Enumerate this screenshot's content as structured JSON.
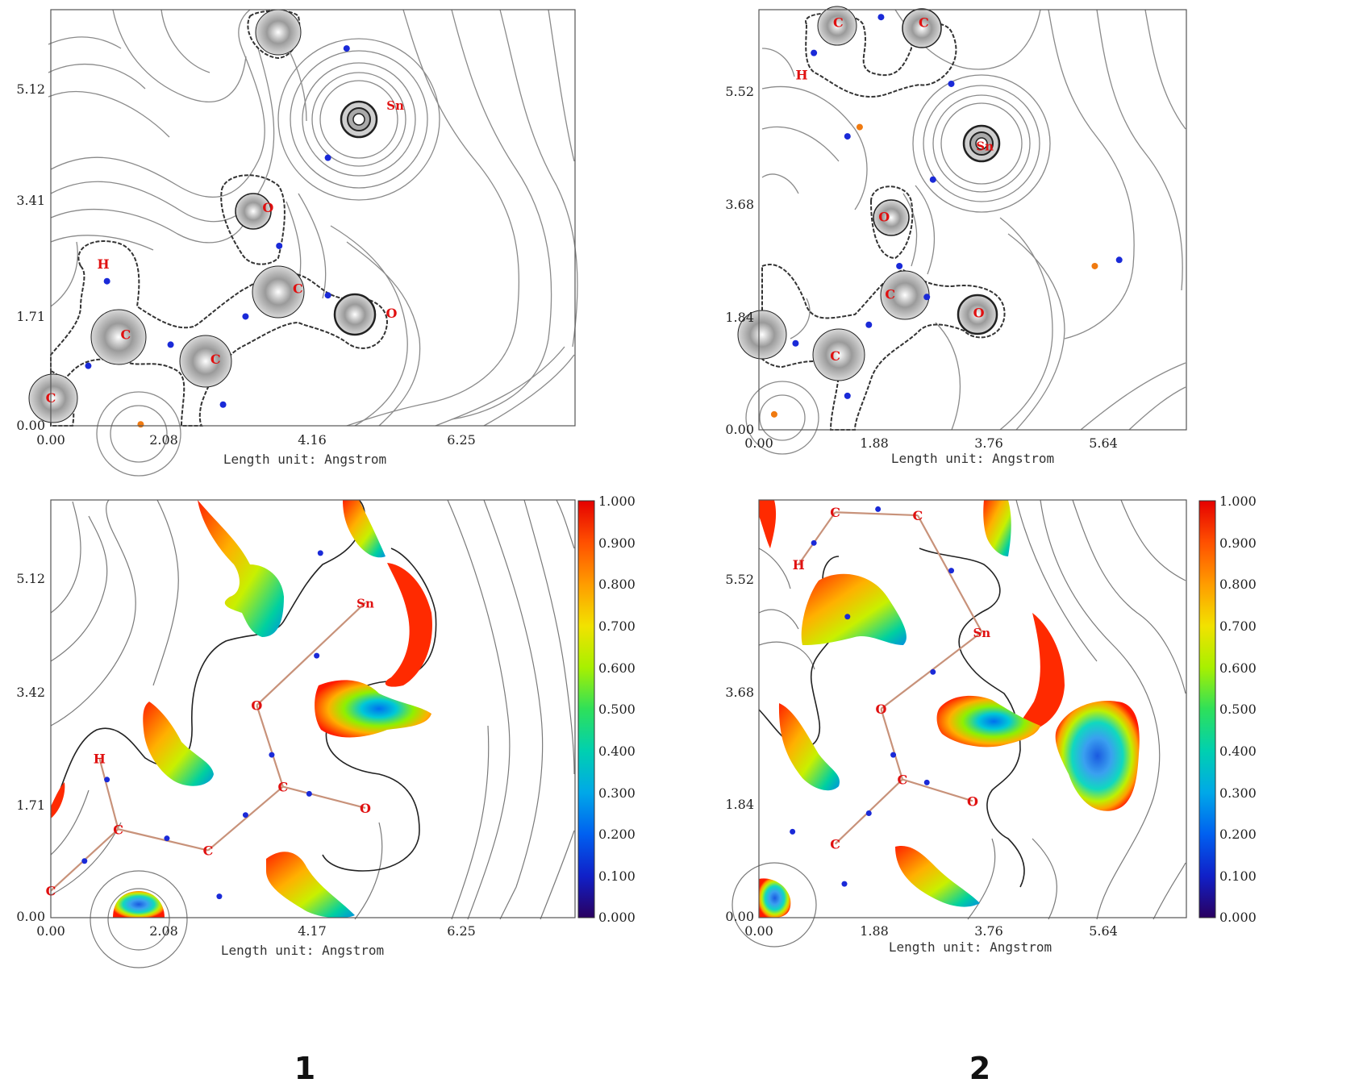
{
  "figure": {
    "captions": [
      "1",
      "2"
    ]
  },
  "chart_data": [
    {
      "type": "contour",
      "title": "",
      "xlabel": "Length unit: Angstrom",
      "ylabel": "",
      "x_ticks": [
        "0.00",
        "2.08",
        "4.16",
        "6.25"
      ],
      "y_ticks": [
        "0.00",
        "1.71",
        "3.41",
        "5.12"
      ],
      "xlim": [
        0,
        7.0
      ],
      "ylim": [
        0,
        5.9
      ],
      "atoms": [
        {
          "label": "Sn",
          "x": 4.6,
          "y": 4.55
        },
        {
          "label": "O",
          "x": 2.9,
          "y": 3.1
        },
        {
          "label": "C",
          "x": 3.3,
          "y": 1.95
        },
        {
          "label": "O",
          "x": 4.55,
          "y": 1.6
        },
        {
          "label": "C",
          "x": 1.0,
          "y": 1.3
        },
        {
          "label": "C",
          "x": 2.2,
          "y": 0.95
        },
        {
          "label": "H",
          "x": 0.7,
          "y": 2.3
        },
        {
          "label": "C",
          "x": 0.0,
          "y": 0.4
        }
      ],
      "bond_critical_points": [
        {
          "x": 3.7,
          "y": 3.8
        },
        {
          "x": 3.05,
          "y": 2.55
        },
        {
          "x": 3.7,
          "y": 1.85
        },
        {
          "x": 2.6,
          "y": 1.55
        },
        {
          "x": 1.6,
          "y": 1.15
        },
        {
          "x": 0.75,
          "y": 2.05
        },
        {
          "x": 0.5,
          "y": 0.85
        },
        {
          "x": 2.3,
          "y": 0.3
        },
        {
          "x": 3.95,
          "y": 5.35
        }
      ],
      "ring_critical_points": [
        {
          "x": 1.2,
          "y": 0.02
        }
      ]
    },
    {
      "type": "contour",
      "title": "",
      "xlabel": "Length unit: Angstrom",
      "ylabel": "",
      "x_ticks": [
        "0.00",
        "1.88",
        "3.76",
        "5.64"
      ],
      "y_ticks": [
        "0.00",
        "1.84",
        "3.68",
        "5.52"
      ],
      "xlim": [
        0,
        7.0
      ],
      "ylim": [
        0,
        6.8
      ],
      "atoms": [
        {
          "label": "Sn",
          "x": 3.7,
          "y": 4.6
        },
        {
          "label": "O",
          "x": 2.05,
          "y": 3.45
        },
        {
          "label": "C",
          "x": 2.15,
          "y": 2.2
        },
        {
          "label": "O",
          "x": 3.6,
          "y": 1.9
        },
        {
          "label": "C",
          "x": 1.25,
          "y": 1.2
        },
        {
          "label": "C",
          "x": 1.3,
          "y": 6.6
        },
        {
          "label": "C",
          "x": 2.7,
          "y": 6.6
        },
        {
          "label": "H",
          "x": 0.7,
          "y": 5.75
        }
      ],
      "bond_critical_points": [
        {
          "x": 2.0,
          "y": 6.68
        },
        {
          "x": 0.9,
          "y": 6.1
        },
        {
          "x": 3.15,
          "y": 5.6
        },
        {
          "x": 1.45,
          "y": 4.75
        },
        {
          "x": 2.85,
          "y": 4.05
        },
        {
          "x": 2.3,
          "y": 2.65
        },
        {
          "x": 2.75,
          "y": 2.15
        },
        {
          "x": 1.8,
          "y": 1.7
        },
        {
          "x": 0.6,
          "y": 1.4
        },
        {
          "x": 1.45,
          "y": 0.55
        },
        {
          "x": 5.9,
          "y": 2.75
        }
      ],
      "ring_critical_points": [
        {
          "x": 1.65,
          "y": 4.9
        },
        {
          "x": 5.5,
          "y": 2.65
        },
        {
          "x": 0.25,
          "y": 0.25
        }
      ]
    },
    {
      "type": "heatmap",
      "title": "",
      "xlabel": "Length unit: Angstrom",
      "ylabel": "",
      "x_ticks": [
        "0.00",
        "2.08",
        "4.17",
        "6.25"
      ],
      "y_ticks": [
        "0.00",
        "1.71",
        "3.42",
        "5.12"
      ],
      "xlim": [
        0,
        7.0
      ],
      "ylim": [
        0,
        5.9
      ],
      "colorbar": {
        "ticks": [
          "1.000",
          "0.900",
          "0.800",
          "0.700",
          "0.600",
          "0.500",
          "0.400",
          "0.300",
          "0.200",
          "0.100",
          "0.000"
        ],
        "range": [
          0,
          1
        ]
      },
      "atoms": [
        {
          "label": "Sn",
          "x": 4.2,
          "y": 4.45
        },
        {
          "label": "O",
          "x": 2.75,
          "y": 3.0
        },
        {
          "label": "C",
          "x": 3.1,
          "y": 1.85
        },
        {
          "label": "O",
          "x": 4.2,
          "y": 1.55
        },
        {
          "label": "C",
          "x": 0.9,
          "y": 1.25
        },
        {
          "label": "C",
          "x": 2.1,
          "y": 0.95
        },
        {
          "label": "H",
          "x": 0.65,
          "y": 2.25
        },
        {
          "label": "C",
          "x": 0.0,
          "y": 0.38
        }
      ],
      "bonds": [
        [
          0,
          1
        ],
        [
          1,
          2
        ],
        [
          2,
          3
        ],
        [
          2,
          5
        ],
        [
          5,
          4
        ],
        [
          4,
          6
        ],
        [
          4,
          7
        ]
      ],
      "critical_points": [
        {
          "x": 3.55,
          "y": 3.7
        },
        {
          "x": 2.95,
          "y": 2.3
        },
        {
          "x": 3.45,
          "y": 1.75
        },
        {
          "x": 2.6,
          "y": 1.45
        },
        {
          "x": 1.55,
          "y": 1.12
        },
        {
          "x": 0.75,
          "y": 1.95
        },
        {
          "x": 0.45,
          "y": 0.8
        },
        {
          "x": 2.25,
          "y": 0.3
        },
        {
          "x": 3.6,
          "y": 5.15
        }
      ]
    },
    {
      "type": "heatmap",
      "title": "",
      "xlabel": "Length unit: Angstrom",
      "ylabel": "",
      "x_ticks": [
        "0.00",
        "1.88",
        "3.76",
        "5.64"
      ],
      "y_ticks": [
        "0.00",
        "1.84",
        "3.68",
        "5.52"
      ],
      "xlim": [
        0,
        7.0
      ],
      "ylim": [
        0,
        6.8
      ],
      "colorbar": {
        "ticks": [
          "1.000",
          "0.900",
          "0.800",
          "0.700",
          "0.600",
          "0.500",
          "0.400",
          "0.300",
          "0.200",
          "0.100",
          "0.000"
        ],
        "range": [
          0,
          1
        ]
      },
      "atoms": [
        {
          "label": "Sn",
          "x": 3.65,
          "y": 4.65
        },
        {
          "label": "O",
          "x": 2.0,
          "y": 3.4
        },
        {
          "label": "C",
          "x": 2.35,
          "y": 2.25
        },
        {
          "label": "O",
          "x": 3.5,
          "y": 1.9
        },
        {
          "label": "C",
          "x": 1.25,
          "y": 1.2
        },
        {
          "label": "C",
          "x": 1.25,
          "y": 6.6
        },
        {
          "label": "C",
          "x": 2.6,
          "y": 6.55
        },
        {
          "label": "H",
          "x": 0.65,
          "y": 5.75
        }
      ],
      "bonds": [
        [
          0,
          1
        ],
        [
          1,
          2
        ],
        [
          2,
          3
        ],
        [
          2,
          4
        ],
        [
          5,
          6
        ],
        [
          5,
          7
        ],
        [
          6,
          0
        ]
      ],
      "critical_points": [
        {
          "x": 1.95,
          "y": 6.65
        },
        {
          "x": 0.9,
          "y": 6.1
        },
        {
          "x": 3.15,
          "y": 5.65
        },
        {
          "x": 2.85,
          "y": 4.0
        },
        {
          "x": 2.2,
          "y": 2.65
        },
        {
          "x": 2.75,
          "y": 2.2
        },
        {
          "x": 1.8,
          "y": 1.7
        },
        {
          "x": 0.55,
          "y": 1.4
        },
        {
          "x": 1.4,
          "y": 0.55
        },
        {
          "x": 1.45,
          "y": 4.9
        }
      ]
    }
  ]
}
